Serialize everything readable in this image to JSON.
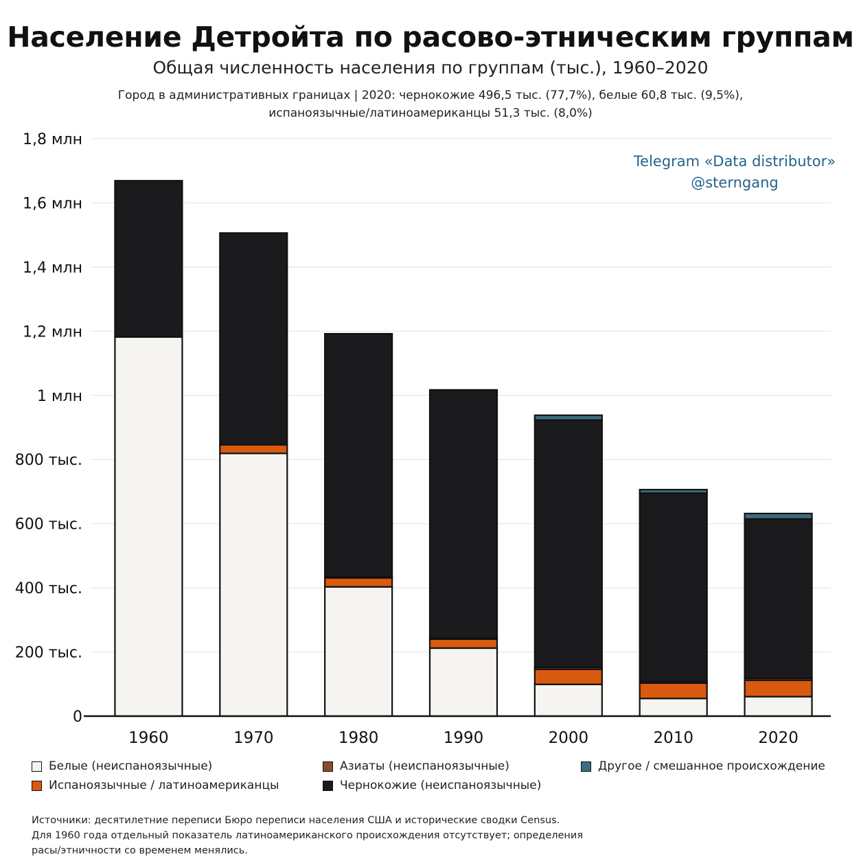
{
  "title": "Население Детройта по расово-этническим группам",
  "subtitle": "Общая численность населения по группам (тыс.), 1960–2020",
  "note": {
    "line1": "Город в административных границах | 2020: чернокожие 496,5 тыс. (77,7%), белые 60,8 тыс. (9,5%),",
    "line2": "испаноязычные/латиноамериканцы 51,3 тыс. (8,0%)"
  },
  "watermark": {
    "line1": "Telegram «Data distributor»",
    "line2": "@sterngang"
  },
  "legend": [
    {
      "key": "white",
      "label": "Белые (неиспаноязычные)"
    },
    {
      "key": "asian",
      "label": "Азиаты (неиспаноязычные)"
    },
    {
      "key": "other",
      "label": "Другое / смешанное происхождение"
    },
    {
      "key": "hispanic",
      "label": "Испаноязычные / латиноамериканцы"
    },
    {
      "key": "black",
      "label": "Чернокожие (неиспаноязычные)"
    }
  ],
  "sources": {
    "line1": "Источники: десятилетние переписи Бюро переписи населения США и исторические сводки Census.",
    "line2": "Для 1960 года отдельный показатель латиноамериканского происхождения отсутствует; определения",
    "line3": "расы/этничности со временем менялись."
  },
  "colors": {
    "white": "#f6f4f1",
    "hispanic": "#d9590f",
    "asian": "#8a4b2c",
    "black": "#1b1b1d",
    "other": "#3c6d7e",
    "grid": "#e6e6e6",
    "axis": "#111111"
  },
  "chart_data": {
    "type": "bar",
    "stacked": true,
    "categories": [
      "1960",
      "1970",
      "1980",
      "1990",
      "2000",
      "2010",
      "2020"
    ],
    "series": [
      {
        "name": "Белые (неиспаноязычные)",
        "key": "white",
        "values": [
          1182,
          819,
          403,
          212,
          99,
          55,
          60.8
        ]
      },
      {
        "name": "Испаноязычные / латиноамериканцы",
        "key": "hispanic",
        "values": [
          0,
          27,
          28,
          28,
          47,
          48,
          51.3
        ]
      },
      {
        "name": "Азиаты (неиспаноязычные)",
        "key": "asian",
        "values": [
          0,
          0,
          3,
          3,
          6,
          5,
          6
        ]
      },
      {
        "name": "Чернокожие (неиспаноязычные)",
        "key": "black",
        "values": [
          487,
          660,
          758,
          774,
          771,
          587,
          496.5
        ]
      },
      {
        "name": "Другое / смешанное происхождение",
        "key": "other",
        "values": [
          0,
          0,
          0,
          0,
          15,
          11,
          17
        ]
      }
    ],
    "y_ticks": [
      {
        "value": 0,
        "label": "0"
      },
      {
        "value": 200,
        "label": "200 тыс."
      },
      {
        "value": 400,
        "label": "400 тыс."
      },
      {
        "value": 600,
        "label": "600 тыс."
      },
      {
        "value": 800,
        "label": "800 тыс."
      },
      {
        "value": 1000,
        "label": "1 млн"
      },
      {
        "value": 1200,
        "label": "1,2 млн"
      },
      {
        "value": 1400,
        "label": "1,4 млн"
      },
      {
        "value": 1600,
        "label": "1,6 млн"
      },
      {
        "value": 1800,
        "label": "1,8 млн"
      }
    ],
    "ylim": [
      0,
      1800
    ],
    "units": "thousands",
    "grid": true,
    "legend_position": "bottom"
  }
}
